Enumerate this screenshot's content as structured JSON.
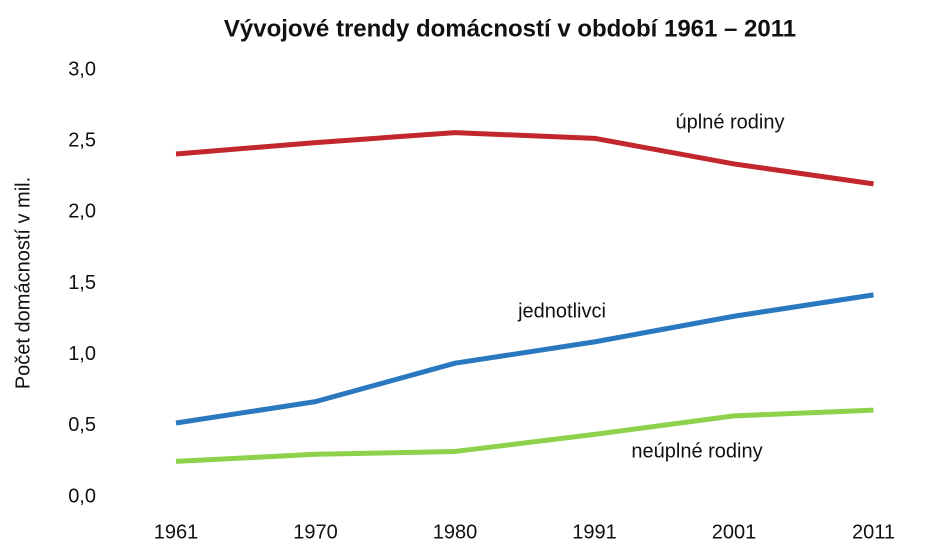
{
  "chart_data": {
    "type": "line",
    "title": "Vývojové trendy domácností v období 1961 – 2011",
    "y_label": "Počet domácností v mil.",
    "categories": [
      "1961",
      "1970",
      "1980",
      "1991",
      "2001",
      "2011"
    ],
    "series": [
      {
        "name": "úplné rodiny",
        "color": "#c1272d",
        "values": [
          2.41,
          2.49,
          2.56,
          2.52,
          2.34,
          2.2
        ]
      },
      {
        "name": "jednotlivci",
        "color": "#2a78bf",
        "values": [
          0.52,
          0.67,
          0.94,
          1.09,
          1.27,
          1.42
        ]
      },
      {
        "name": "neúplné rodiny",
        "color": "#8ed24c",
        "values": [
          0.25,
          0.3,
          0.32,
          0.44,
          0.57,
          0.61
        ]
      }
    ],
    "ylim": [
      0,
      3
    ],
    "yticks": [
      {
        "value": 0,
        "label": "0,0"
      },
      {
        "value": 0.5,
        "label": "0,5"
      },
      {
        "value": 1,
        "label": "1,0"
      },
      {
        "value": 1.5,
        "label": "1,5"
      },
      {
        "value": 2,
        "label": "2,0"
      },
      {
        "value": 2.5,
        "label": "2,5"
      },
      {
        "value": 3,
        "label": "3,0"
      }
    ],
    "grid": false
  }
}
